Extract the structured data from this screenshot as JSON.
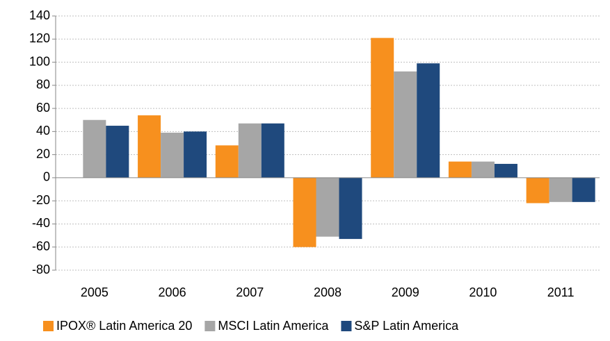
{
  "chart_data": {
    "type": "bar",
    "categories": [
      "2005",
      "2006",
      "2007",
      "2008",
      "2009",
      "2010",
      "2011"
    ],
    "series": [
      {
        "name": "IPOX® Latin America 20",
        "color": "#f7901e",
        "values": [
          null,
          54,
          28,
          -60,
          121,
          14,
          -22
        ]
      },
      {
        "name": "MSCI Latin America",
        "color": "#a6a6a6",
        "values": [
          50,
          39,
          47,
          -51,
          92,
          14,
          -21
        ]
      },
      {
        "name": "S&P Latin America",
        "color": "#1f497d",
        "values": [
          45,
          40,
          47,
          -53,
          99,
          12,
          -21
        ]
      }
    ],
    "ylim": [
      -80,
      140
    ],
    "yticks": [
      -80,
      -60,
      -40,
      -20,
      0,
      20,
      40,
      60,
      80,
      100,
      120,
      140
    ],
    "grid": true,
    "legend": "bottom"
  }
}
